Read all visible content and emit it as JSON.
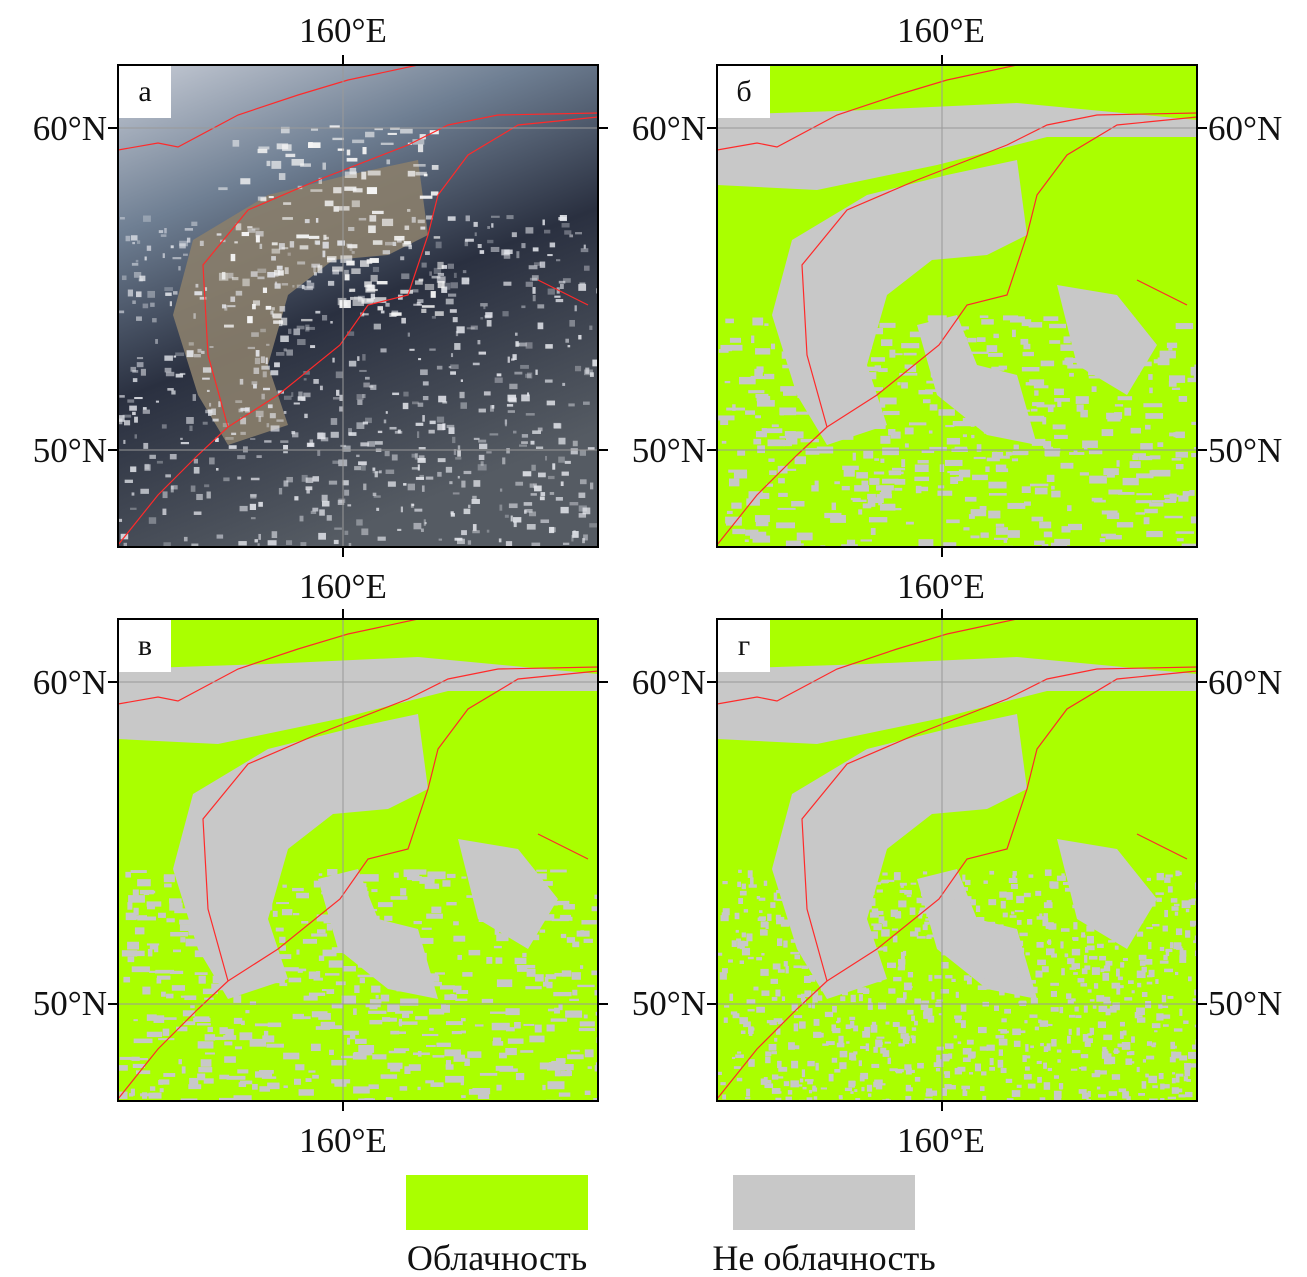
{
  "panels": [
    {
      "label": "а"
    },
    {
      "label": "б"
    },
    {
      "label": "в"
    },
    {
      "label": "г"
    }
  ],
  "axis_labels": {
    "lon": "160°E",
    "lat_north": "60°N",
    "lat_south": "50°N"
  },
  "legend": [
    {
      "label": "Облачность",
      "color": "#aaff00"
    },
    {
      "label": "Не облачность",
      "color": "#c8c8c8"
    }
  ]
}
